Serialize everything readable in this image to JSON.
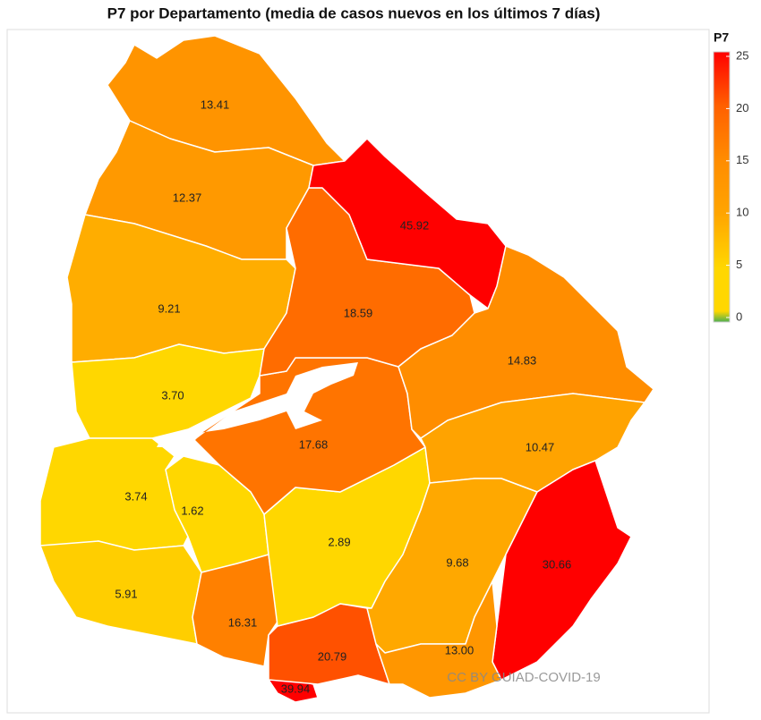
{
  "chart_data": {
    "type": "choropleth",
    "title": "P7 por Departamento (media de casos nuevos en los últimos 7 días)",
    "values": [
      13.41,
      12.37,
      9.21,
      3.7,
      3.74,
      5.91,
      1.62,
      16.31,
      39.94,
      20.79,
      2.89,
      17.68,
      18.59,
      45.92,
      14.83,
      10.47,
      9.68,
      30.66,
      13
    ],
    "value_labels": [
      "13.41",
      "12.37",
      "9.21",
      "3.70",
      "3.74",
      "5.91",
      "1.62",
      "16.31",
      "39.94",
      "20.79",
      "2.89",
      "17.68",
      "18.59",
      "45.92",
      "14.83",
      "10.47",
      "9.68",
      "30.66",
      "13.00"
    ],
    "legend": {
      "title": "P7",
      "lim": [
        0,
        25
      ],
      "ticks": [
        0,
        5,
        10,
        15,
        20,
        25
      ]
    },
    "colorscale": [
      [
        0,
        "#4caf50"
      ],
      [
        1,
        "#ffd700"
      ],
      [
        5,
        "#ffd700"
      ],
      [
        10,
        "#ffa500"
      ],
      [
        15,
        "#ff8c00"
      ],
      [
        20,
        "#ff6000"
      ],
      [
        25,
        "#ff0000"
      ]
    ],
    "watermark": "CC BY GUIAD-COVID-19"
  }
}
